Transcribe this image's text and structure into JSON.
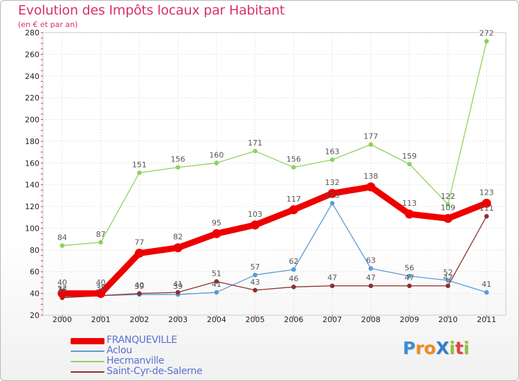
{
  "title": "Evolution des Impôts locaux par Habitant",
  "subtitle": "(en € et par an)",
  "logo": {
    "text": "ProXiti",
    "letters": [
      {
        "ch": "P",
        "color": "#3a8fd8"
      },
      {
        "ch": "r",
        "color": "#f08a1c"
      },
      {
        "ch": "o",
        "color": "#f08a1c"
      },
      {
        "ch": "X",
        "color": "#2e7fd0"
      },
      {
        "ch": "i",
        "color": "#8cc43c"
      },
      {
        "ch": "t",
        "color": "#e84040"
      },
      {
        "ch": "i",
        "color": "#8cc43c"
      }
    ]
  },
  "chart_data": {
    "type": "line",
    "title": "Evolution des Impôts locaux par Habitant",
    "subtitle": "(en € et par an)",
    "x": [
      "2000",
      "2001",
      "2002",
      "2003",
      "2004",
      "2005",
      "2006",
      "2007",
      "2008",
      "2009",
      "2010",
      "2011"
    ],
    "ylim": [
      20,
      280
    ],
    "yticks": [
      20,
      40,
      60,
      80,
      100,
      120,
      140,
      160,
      180,
      200,
      220,
      240,
      260,
      280
    ],
    "grid": true,
    "legend_position": "bottom-left",
    "series": [
      {
        "name": "FRANQUEVILLE",
        "color": "#ee0000",
        "width": 9,
        "dot": 6.5,
        "values": [
          40,
          40,
          77,
          82,
          95,
          103,
          117,
          132,
          138,
          113,
          109,
          123
        ]
      },
      {
        "name": "Aclou",
        "color": "#5b9bd5",
        "width": 1.3,
        "dot": 3,
        "values": [
          37,
          38,
          39,
          39,
          41,
          57,
          62,
          123,
          63,
          56,
          52,
          41
        ]
      },
      {
        "name": "Hecmanville",
        "color": "#8fd160",
        "width": 1.3,
        "dot": 3,
        "values": [
          84,
          87,
          151,
          156,
          160,
          171,
          156,
          163,
          177,
          159,
          122,
          272
        ]
      },
      {
        "name": "Saint-Cyr-de-Salerne",
        "color": "#8b2f2f",
        "width": 1.3,
        "dot": 3,
        "values": [
          36,
          38,
          40,
          41,
          51,
          43,
          46,
          47,
          47,
          47,
          47,
          111
        ]
      }
    ]
  }
}
